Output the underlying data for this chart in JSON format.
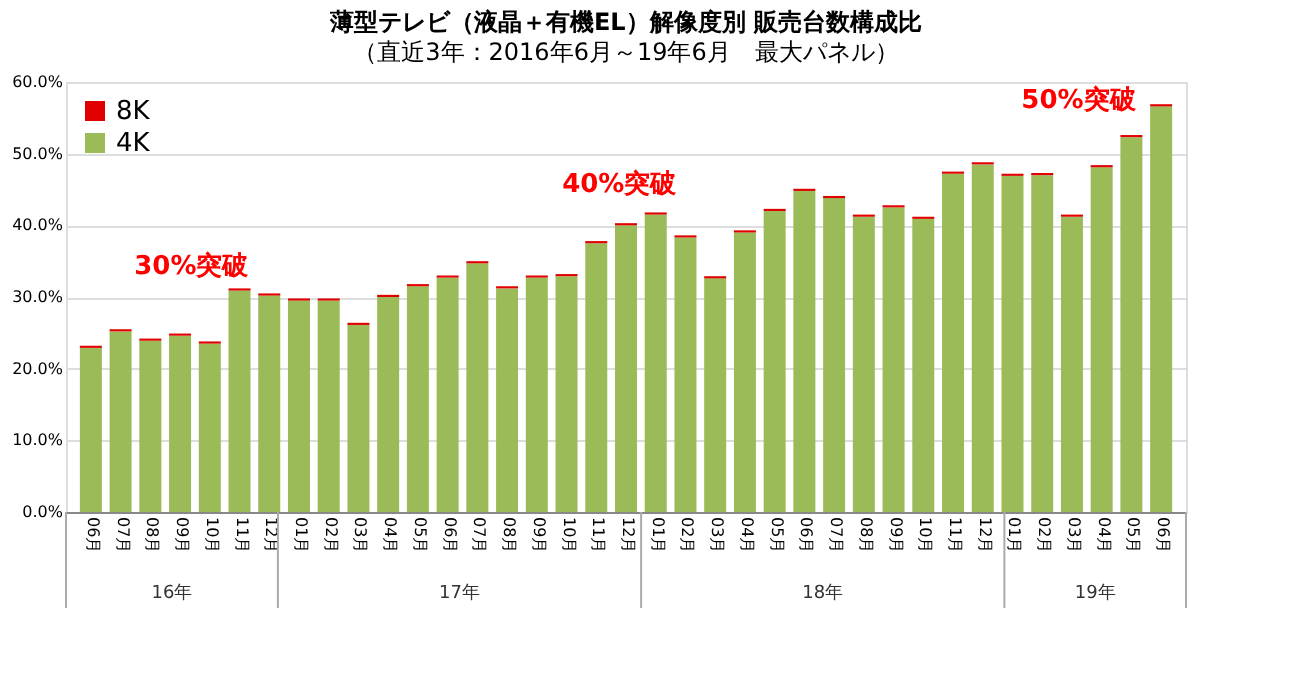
{
  "chart_data": {
    "type": "bar",
    "stacked": true,
    "title": "薄型テレビ（液晶＋有機EL）解像度別 販売台数構成比",
    "subtitle": "（直近3年：2016年6月～19年6月　最大パネル）",
    "categories": [
      "06月",
      "07月",
      "08月",
      "09月",
      "10月",
      "11月",
      "12月",
      "01月",
      "02月",
      "03月",
      "04月",
      "05月",
      "06月",
      "07月",
      "08月",
      "09月",
      "10月",
      "11月",
      "12月",
      "01月",
      "02月",
      "03月",
      "04月",
      "05月",
      "06月",
      "07月",
      "08月",
      "09月",
      "10月",
      "11月",
      "12月",
      "01月",
      "02月",
      "03月",
      "04月",
      "05月",
      "06月"
    ],
    "series": [
      {
        "name": "4K",
        "color": "#9bbb59",
        "values": [
          22.9,
          25.2,
          23.9,
          24.6,
          23.5,
          30.9,
          30.2,
          29.5,
          29.5,
          26.1,
          30.0,
          31.5,
          32.7,
          34.7,
          31.2,
          32.7,
          32.9,
          37.5,
          40.0,
          41.5,
          38.3,
          32.6,
          39.0,
          42.0,
          44.8,
          43.8,
          41.2,
          42.5,
          40.9,
          47.2,
          48.5,
          46.9,
          47.0,
          41.2,
          48.1,
          52.3,
          56.6
        ]
      },
      {
        "name": "8K",
        "color": "#e00000",
        "values": [
          0.3,
          0.3,
          0.3,
          0.3,
          0.3,
          0.3,
          0.3,
          0.3,
          0.3,
          0.3,
          0.3,
          0.3,
          0.3,
          0.3,
          0.3,
          0.3,
          0.3,
          0.3,
          0.3,
          0.3,
          0.3,
          0.3,
          0.3,
          0.3,
          0.3,
          0.3,
          0.3,
          0.3,
          0.3,
          0.3,
          0.3,
          0.3,
          0.3,
          0.3,
          0.3,
          0.3,
          0.3
        ]
      }
    ],
    "ylim": [
      0,
      60
    ],
    "yticks": [
      {
        "value": 0,
        "label": "0.0%"
      },
      {
        "value": 10,
        "label": "10.0%"
      },
      {
        "value": 20,
        "label": "20.0%"
      },
      {
        "value": 30,
        "label": "30.0%"
      },
      {
        "value": 40,
        "label": "40.0%"
      },
      {
        "value": 50,
        "label": "50.0%"
      },
      {
        "value": 60,
        "label": "60.0%"
      }
    ],
    "grid": "y",
    "legend": "top left",
    "annotations": [
      {
        "text": "30%突破",
        "x": "11月",
        "y": 31.2
      },
      "40%突破",
      "50%突破",
      "16年",
      "17年",
      "18年",
      "19年"
    ]
  }
}
